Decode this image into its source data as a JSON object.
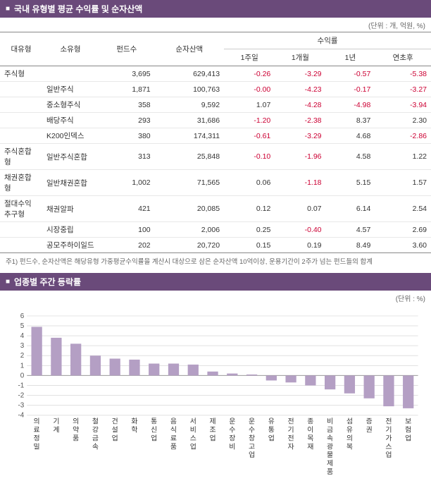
{
  "section1": {
    "title": "국내 유형별 평균 수익률 및 순자산액",
    "unit": "(단위 : 개, 억원, %)",
    "headers": {
      "type1": "대유형",
      "type2": "소유형",
      "funds": "펀드수",
      "nav": "순자산액",
      "returns_group": "수익률",
      "r1w": "1주일",
      "r1m": "1개월",
      "r1y": "1년",
      "rytd": "연초후"
    },
    "rows": [
      {
        "t1": "주식형",
        "t2": "",
        "funds": "3,695",
        "nav": "629,413",
        "r1w": "-0.26",
        "r1m": "-3.29",
        "r1y": "-0.57",
        "rytd": "-5.38",
        "neg": [
          true,
          true,
          true,
          true
        ]
      },
      {
        "t1": "",
        "t2": "일반주식",
        "funds": "1,871",
        "nav": "100,763",
        "r1w": "-0.00",
        "r1m": "-4.23",
        "r1y": "-0.17",
        "rytd": "-3.27",
        "neg": [
          true,
          true,
          true,
          true
        ]
      },
      {
        "t1": "",
        "t2": "중소형주식",
        "funds": "358",
        "nav": "9,592",
        "r1w": "1.07",
        "r1m": "-4.28",
        "r1y": "-4.98",
        "rytd": "-3.94",
        "neg": [
          false,
          true,
          true,
          true
        ]
      },
      {
        "t1": "",
        "t2": "배당주식",
        "funds": "293",
        "nav": "31,686",
        "r1w": "-1.20",
        "r1m": "-2.38",
        "r1y": "8.37",
        "rytd": "2.30",
        "neg": [
          true,
          true,
          false,
          false
        ]
      },
      {
        "t1": "",
        "t2": "K200인덱스",
        "funds": "380",
        "nav": "174,311",
        "r1w": "-0.61",
        "r1m": "-3.29",
        "r1y": "4.68",
        "rytd": "-2.86",
        "neg": [
          true,
          true,
          false,
          true
        ]
      },
      {
        "t1": "주식혼합형",
        "t2": "일반주식혼합",
        "funds": "313",
        "nav": "25,848",
        "r1w": "-0.10",
        "r1m": "-1.96",
        "r1y": "4.58",
        "rytd": "1.22",
        "neg": [
          true,
          true,
          false,
          false
        ]
      },
      {
        "t1": "채권혼합형",
        "t2": "일반채권혼합",
        "funds": "1,002",
        "nav": "71,565",
        "r1w": "0.06",
        "r1m": "-1.18",
        "r1y": "5.15",
        "rytd": "1.57",
        "neg": [
          false,
          true,
          false,
          false
        ]
      },
      {
        "t1": "절대수익추구형",
        "t2": "채권알파",
        "funds": "421",
        "nav": "20,085",
        "r1w": "0.12",
        "r1m": "0.07",
        "r1y": "6.14",
        "rytd": "2.54",
        "neg": [
          false,
          false,
          false,
          false
        ]
      },
      {
        "t1": "",
        "t2": "시장중립",
        "funds": "100",
        "nav": "2,006",
        "r1w": "0.25",
        "r1m": "-0.40",
        "r1y": "4.57",
        "rytd": "2.69",
        "neg": [
          false,
          true,
          false,
          false
        ]
      },
      {
        "t1": "",
        "t2": "공모주하이일드",
        "funds": "202",
        "nav": "20,720",
        "r1w": "0.15",
        "r1m": "0.19",
        "r1y": "8.49",
        "rytd": "3.60",
        "neg": [
          false,
          false,
          false,
          false
        ]
      }
    ],
    "footnote": "주1) 펀드수, 순자산액은 해당유형 가중평균수익률을 계산시 대상으로 삼은 순자산액 10억이상, 운용기간이 2주가 넘는 펀드들의 합계"
  },
  "section2": {
    "title": "업종별 주간 등락률",
    "unit": "(단위 : %)",
    "chart": {
      "type": "bar",
      "ylim": [
        -4,
        6
      ],
      "ytick_step": 1,
      "bar_color": "#b49fc4",
      "grid_color": "#e0e0e0",
      "axis_color": "#999999",
      "background_color": "#ffffff",
      "label_fontsize": 10,
      "categories": [
        "의료정밀",
        "기계",
        "의약품",
        "철강금속",
        "건설업",
        "화학",
        "통신업",
        "음식료품",
        "서비스업",
        "제조업",
        "운수장비",
        "운수창고업",
        "유통업",
        "전기전자",
        "종이목재",
        "비금속광물제품",
        "섬유의복",
        "증권",
        "전기가스업",
        "보험업"
      ],
      "values": [
        4.9,
        3.8,
        3.2,
        2.0,
        1.7,
        1.6,
        1.2,
        1.2,
        1.1,
        0.4,
        0.2,
        0.1,
        -0.5,
        -0.7,
        -1.0,
        -1.4,
        -1.8,
        -2.3,
        -3.1,
        -3.3
      ]
    }
  }
}
